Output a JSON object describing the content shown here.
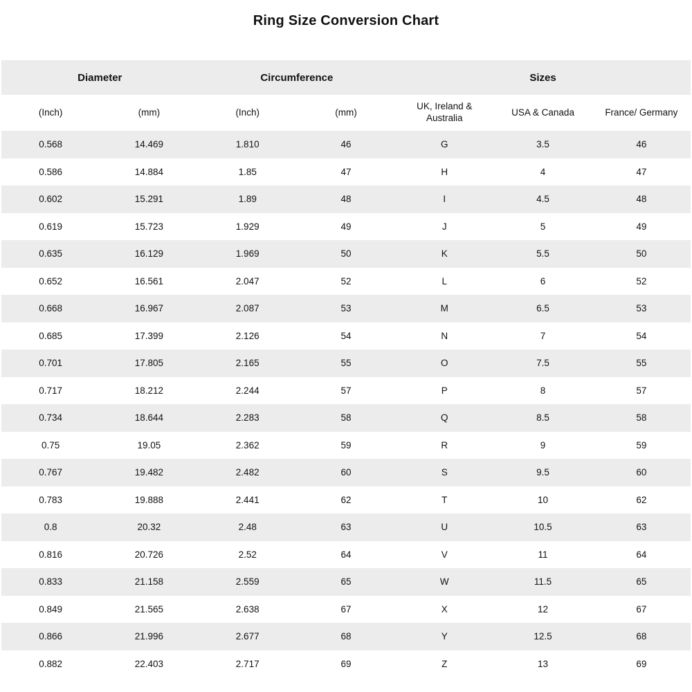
{
  "title": "Ring Size Conversion Chart",
  "colors": {
    "background": "#ffffff",
    "stripe": "#ececec",
    "text": "#111111"
  },
  "table": {
    "group_headers": [
      {
        "label": "Diameter",
        "span": 2
      },
      {
        "label": "Circumference",
        "span": 2
      },
      {
        "label": "Sizes",
        "span": 3
      }
    ],
    "sub_headers": [
      "(Inch)",
      "(mm)",
      "(Inch)",
      "(mm)",
      "UK, Ireland & Australia",
      "USA & Canada",
      "France/ Germany"
    ]
  },
  "chart_data": {
    "type": "table",
    "title": "Ring Size Conversion Chart",
    "column_groups": [
      "Diameter",
      "Diameter",
      "Circumference",
      "Circumference",
      "Sizes",
      "Sizes",
      "Sizes"
    ],
    "columns": [
      "Diameter (Inch)",
      "Diameter (mm)",
      "Circumference (Inch)",
      "Circumference (mm)",
      "UK, Ireland & Australia",
      "USA & Canada",
      "France/ Germany"
    ],
    "rows": [
      [
        "0.568",
        "14.469",
        "1.810",
        "46",
        "G",
        "3.5",
        "46"
      ],
      [
        "0.586",
        "14.884",
        "1.85",
        "47",
        "H",
        "4",
        "47"
      ],
      [
        "0.602",
        "15.291",
        "1.89",
        "48",
        "I",
        "4.5",
        "48"
      ],
      [
        "0.619",
        "15.723",
        "1.929",
        "49",
        "J",
        "5",
        "49"
      ],
      [
        "0.635",
        "16.129",
        "1.969",
        "50",
        "K",
        "5.5",
        "50"
      ],
      [
        "0.652",
        "16.561",
        "2.047",
        "52",
        "L",
        "6",
        "52"
      ],
      [
        "0.668",
        "16.967",
        "2.087",
        "53",
        "M",
        "6.5",
        "53"
      ],
      [
        "0.685",
        "17.399",
        "2.126",
        "54",
        "N",
        "7",
        "54"
      ],
      [
        "0.701",
        "17.805",
        "2.165",
        "55",
        "O",
        "7.5",
        "55"
      ],
      [
        "0.717",
        "18.212",
        "2.244",
        "57",
        "P",
        "8",
        "57"
      ],
      [
        "0.734",
        "18.644",
        "2.283",
        "58",
        "Q",
        "8.5",
        "58"
      ],
      [
        "0.75",
        "19.05",
        "2.362",
        "59",
        "R",
        "9",
        "59"
      ],
      [
        "0.767",
        "19.482",
        "2.482",
        "60",
        "S",
        "9.5",
        "60"
      ],
      [
        "0.783",
        "19.888",
        "2.441",
        "62",
        "T",
        "10",
        "62"
      ],
      [
        "0.8",
        "20.32",
        "2.48",
        "63",
        "U",
        "10.5",
        "63"
      ],
      [
        "0.816",
        "20.726",
        "2.52",
        "64",
        "V",
        "11",
        "64"
      ],
      [
        "0.833",
        "21.158",
        "2.559",
        "65",
        "W",
        "11.5",
        "65"
      ],
      [
        "0.849",
        "21.565",
        "2.638",
        "67",
        "X",
        "12",
        "67"
      ],
      [
        "0.866",
        "21.996",
        "2.677",
        "68",
        "Y",
        "12.5",
        "68"
      ],
      [
        "0.882",
        "22.403",
        "2.717",
        "69",
        "Z",
        "13",
        "69"
      ]
    ]
  }
}
